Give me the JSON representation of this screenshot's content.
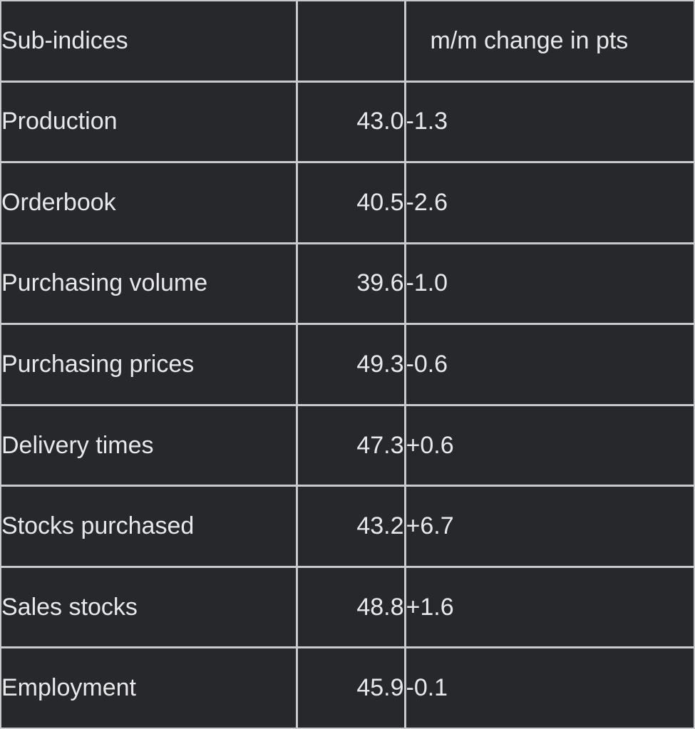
{
  "table": {
    "headers": {
      "label": "Sub-indices",
      "value": "",
      "change": "m/m change in pts"
    },
    "rows": [
      {
        "label": "Production",
        "value": "43.0",
        "change": "-1.3"
      },
      {
        "label": "Orderbook",
        "value": "40.5",
        "change": "-2.6"
      },
      {
        "label": "Purchasing volume",
        "value": "39.6",
        "change": "-1.0"
      },
      {
        "label": "Purchasing prices",
        "value": "49.3",
        "change": "-0.6"
      },
      {
        "label": "Delivery times",
        "value": "47.3",
        "change": "+0.6"
      },
      {
        "label": "Stocks purchased",
        "value": "43.2",
        "change": "+6.7"
      },
      {
        "label": "Sales stocks",
        "value": "48.8",
        "change": "+1.6"
      },
      {
        "label": "Employment",
        "value": "45.9",
        "change": "-0.1"
      }
    ]
  },
  "colors": {
    "cell_background": "#27282c",
    "grid_lines": "#c9cacc",
    "text": "#e8e8ea"
  }
}
